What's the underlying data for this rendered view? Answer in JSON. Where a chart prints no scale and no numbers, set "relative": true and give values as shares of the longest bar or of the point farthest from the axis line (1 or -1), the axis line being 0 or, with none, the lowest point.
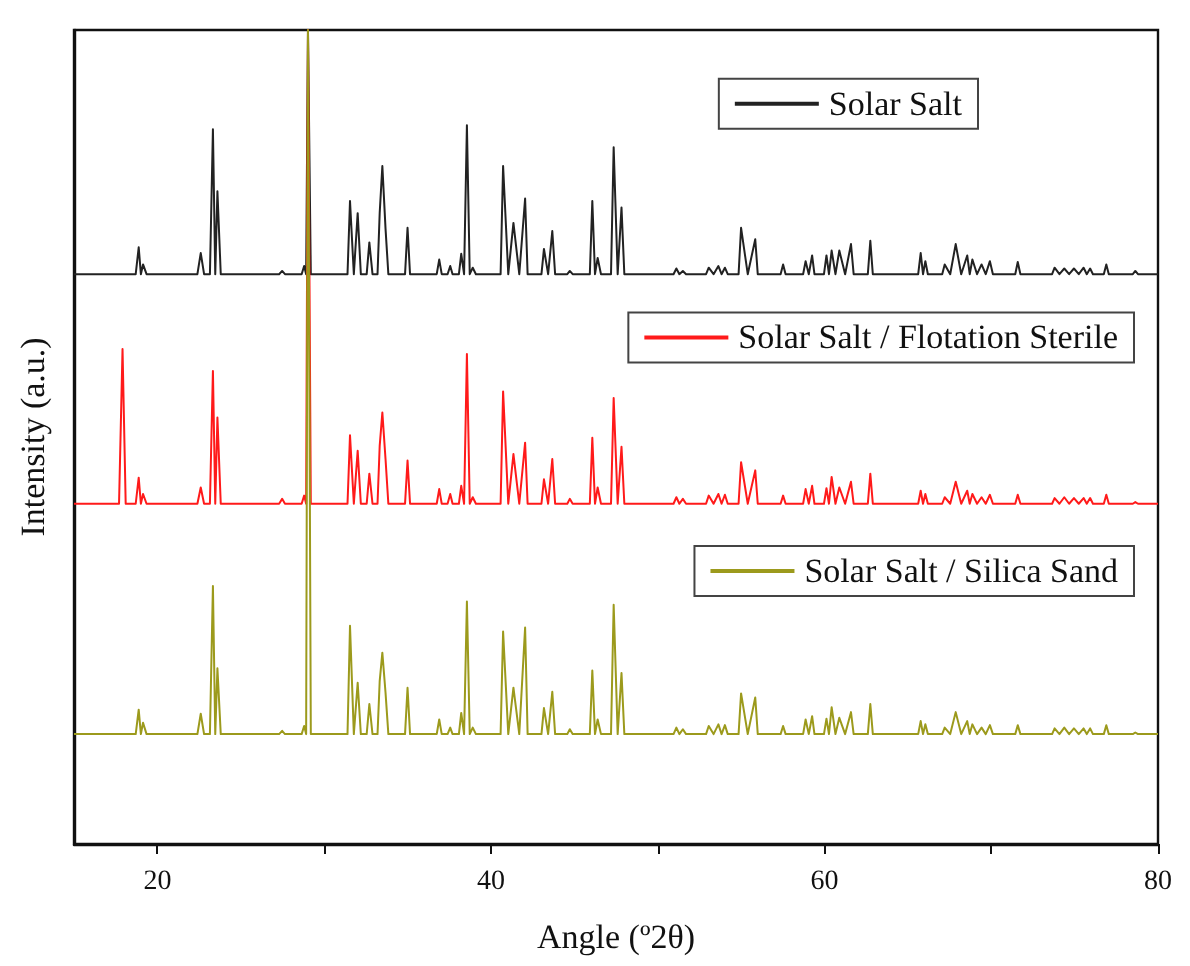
{
  "chart_data": {
    "type": "line",
    "xlabel": "Angle (º2θ)",
    "ylabel": "Intensity (a.u.)",
    "relative": true,
    "xlim": [
      15,
      80
    ],
    "xticks": [
      20,
      {
        "value": 30,
        "label": null
      },
      40,
      {
        "value": 50,
        "label": null
      },
      60,
      {
        "value": 70,
        "label": null
      },
      80
    ],
    "grid": false,
    "legend": "top right",
    "marker": "none",
    "line_style": "solid",
    "x": [
      15,
      17.7,
      17.91,
      18.1,
      18.7,
      18.88,
      19.01,
      19.14,
      19.35,
      22.4,
      22.6,
      22.8,
      23.15,
      23.33,
      23.47,
      23.6,
      23.8,
      27.3,
      27.48,
      27.65,
      28.65,
      28.8,
      28.92,
      29.03,
      29.2,
      31.4,
      31.55,
      31.78,
      32.01,
      32.2,
      32.55,
      32.71,
      32.9,
      33.2,
      33.33,
      33.49,
      33.68,
      33.85,
      34.85,
      35,
      35.15,
      36.75,
      36.9,
      37.05,
      37.4,
      37.56,
      37.7,
      38.08,
      38.22,
      38.39,
      38.56,
      38.73,
      38.91,
      39.1,
      40.58,
      40.73,
      41.04,
      41.35,
      41.7,
      42.05,
      42.2,
      43.03,
      43.18,
      43.43,
      43.68,
      43.85,
      44.58,
      44.73,
      44.9,
      45.93,
      46.08,
      46.24,
      46.4,
      46.6,
      47.2,
      47.36,
      47.6,
      47.83,
      48,
      50.95,
      51.12,
      51.3,
      51.51,
      51.7,
      52.9,
      53.06,
      53.35,
      53.64,
      53.83,
      54.03,
      54.2,
      54.85,
      55,
      55.4,
      55.85,
      56,
      57.37,
      57.52,
      57.67,
      58.72,
      58.87,
      59.06,
      59.26,
      59.4,
      59.97,
      60.12,
      60.27,
      60.43,
      60.66,
      60.89,
      61.24,
      61.59,
      61.75,
      62.6,
      62.75,
      62.9,
      65.62,
      65.77,
      65.91,
      66.05,
      66.2,
      67.06,
      67.21,
      67.54,
      67.87,
      68.2,
      68.56,
      68.71,
      68.87,
      69.15,
      69.42,
      69.67,
      69.92,
      70.1,
      71.44,
      71.59,
      71.75,
      73.65,
      73.8,
      74.09,
      74.38,
      74.67,
      74.96,
      75.25,
      75.54,
      75.73,
      75.93,
      76.1,
      76.75,
      76.9,
      77.05,
      78.49,
      78.64,
      78.8,
      80
    ],
    "series": [
      {
        "name": "Solar Salt",
        "color": "#222222",
        "values": [
          0.7,
          0.7,
          0.7,
          0.7,
          0.7,
          0.733,
          0.7,
          0.712,
          0.7,
          0.7,
          0.726,
          0.7,
          0.7,
          0.878,
          0.7,
          0.802,
          0.7,
          0.7,
          0.704,
          0.7,
          0.7,
          0.71,
          0.7,
          1,
          0.7,
          0.7,
          0.79,
          0.7,
          0.775,
          0.7,
          0.7,
          0.739,
          0.7,
          0.7,
          0.775,
          0.833,
          0.756,
          0.7,
          0.7,
          0.757,
          0.7,
          0.7,
          0.718,
          0.7,
          0.7,
          0.71,
          0.7,
          0.7,
          0.725,
          0.7,
          0.883,
          0.7,
          0.708,
          0.7,
          0.7,
          0.833,
          0.7,
          0.763,
          0.7,
          0.793,
          0.7,
          0.7,
          0.731,
          0.7,
          0.753,
          0.7,
          0.7,
          0.704,
          0.7,
          0.7,
          0.79,
          0.7,
          0.72,
          0.7,
          0.7,
          0.856,
          0.7,
          0.782,
          0.7,
          0.7,
          0.707,
          0.7,
          0.704,
          0.7,
          0.7,
          0.708,
          0.7,
          0.71,
          0.7,
          0.708,
          0.7,
          0.7,
          0.757,
          0.7,
          0.743,
          0.7,
          0.7,
          0.712,
          0.7,
          0.7,
          0.716,
          0.7,
          0.723,
          0.7,
          0.7,
          0.723,
          0.7,
          0.729,
          0.7,
          0.729,
          0.7,
          0.737,
          0.7,
          0.7,
          0.741,
          0.7,
          0.7,
          0.726,
          0.7,
          0.716,
          0.7,
          0.7,
          0.712,
          0.7,
          0.737,
          0.7,
          0.723,
          0.7,
          0.718,
          0.7,
          0.712,
          0.7,
          0.716,
          0.7,
          0.7,
          0.715,
          0.7,
          0.7,
          0.708,
          0.7,
          0.707,
          0.7,
          0.707,
          0.7,
          0.708,
          0.7,
          0.707,
          0.7,
          0.7,
          0.712,
          0.7,
          0.7,
          0.704,
          0.7,
          0.7
        ]
      },
      {
        "name": "Solar Salt / Flotation Sterile",
        "color": "#ff1a1a",
        "values": [
          0.418,
          0.418,
          0.608,
          0.418,
          0.418,
          0.45,
          0.418,
          0.43,
          0.418,
          0.418,
          0.438,
          0.418,
          0.418,
          0.581,
          0.418,
          0.524,
          0.418,
          0.418,
          0.424,
          0.418,
          0.418,
          0.428,
          0.418,
          1,
          0.418,
          0.418,
          0.502,
          0.418,
          0.483,
          0.418,
          0.418,
          0.455,
          0.418,
          0.418,
          0.489,
          0.53,
          0.473,
          0.418,
          0.418,
          0.471,
          0.418,
          0.418,
          0.436,
          0.418,
          0.418,
          0.43,
          0.418,
          0.418,
          0.44,
          0.418,
          0.602,
          0.418,
          0.426,
          0.418,
          0.418,
          0.556,
          0.418,
          0.479,
          0.418,
          0.493,
          0.418,
          0.418,
          0.448,
          0.418,
          0.473,
          0.418,
          0.418,
          0.424,
          0.418,
          0.418,
          0.499,
          0.418,
          0.438,
          0.418,
          0.418,
          0.548,
          0.418,
          0.488,
          0.418,
          0.418,
          0.426,
          0.418,
          0.424,
          0.418,
          0.418,
          0.428,
          0.418,
          0.43,
          0.418,
          0.429,
          0.418,
          0.418,
          0.469,
          0.418,
          0.459,
          0.418,
          0.418,
          0.428,
          0.418,
          0.418,
          0.436,
          0.418,
          0.44,
          0.418,
          0.418,
          0.437,
          0.418,
          0.451,
          0.418,
          0.438,
          0.418,
          0.445,
          0.418,
          0.418,
          0.455,
          0.418,
          0.418,
          0.434,
          0.418,
          0.43,
          0.418,
          0.418,
          0.426,
          0.418,
          0.445,
          0.418,
          0.434,
          0.418,
          0.43,
          0.418,
          0.426,
          0.418,
          0.429,
          0.418,
          0.418,
          0.429,
          0.418,
          0.418,
          0.425,
          0.418,
          0.426,
          0.418,
          0.425,
          0.418,
          0.425,
          0.418,
          0.425,
          0.418,
          0.418,
          0.429,
          0.418,
          0.418,
          0.42,
          0.418,
          0.418
        ]
      },
      {
        "name": "Solar Salt / Silica Sand",
        "color": "#9c9a1c",
        "values": [
          0.135,
          0.135,
          0.135,
          0.135,
          0.135,
          0.165,
          0.135,
          0.149,
          0.135,
          0.135,
          0.16,
          0.135,
          0.135,
          0.317,
          0.135,
          0.216,
          0.135,
          0.135,
          0.139,
          0.135,
          0.135,
          0.145,
          0.135,
          1,
          0.135,
          0.135,
          0.268,
          0.135,
          0.198,
          0.135,
          0.135,
          0.172,
          0.135,
          0.135,
          0.2,
          0.235,
          0.186,
          0.135,
          0.135,
          0.192,
          0.135,
          0.135,
          0.153,
          0.135,
          0.135,
          0.143,
          0.135,
          0.135,
          0.161,
          0.135,
          0.298,
          0.135,
          0.143,
          0.135,
          0.135,
          0.261,
          0.135,
          0.192,
          0.135,
          0.266,
          0.135,
          0.135,
          0.167,
          0.135,
          0.187,
          0.135,
          0.135,
          0.141,
          0.135,
          0.135,
          0.213,
          0.135,
          0.153,
          0.135,
          0.135,
          0.294,
          0.135,
          0.21,
          0.135,
          0.135,
          0.143,
          0.135,
          0.141,
          0.135,
          0.135,
          0.145,
          0.135,
          0.147,
          0.135,
          0.146,
          0.135,
          0.135,
          0.185,
          0.135,
          0.18,
          0.135,
          0.135,
          0.145,
          0.135,
          0.135,
          0.153,
          0.135,
          0.157,
          0.135,
          0.135,
          0.154,
          0.135,
          0.168,
          0.135,
          0.155,
          0.135,
          0.162,
          0.135,
          0.135,
          0.172,
          0.135,
          0.135,
          0.151,
          0.135,
          0.147,
          0.135,
          0.135,
          0.143,
          0.135,
          0.162,
          0.135,
          0.151,
          0.135,
          0.147,
          0.135,
          0.143,
          0.135,
          0.146,
          0.135,
          0.135,
          0.146,
          0.135,
          0.135,
          0.142,
          0.135,
          0.143,
          0.135,
          0.142,
          0.135,
          0.142,
          0.135,
          0.142,
          0.135,
          0.135,
          0.146,
          0.135,
          0.135,
          0.137,
          0.135,
          0.135
        ]
      }
    ]
  }
}
